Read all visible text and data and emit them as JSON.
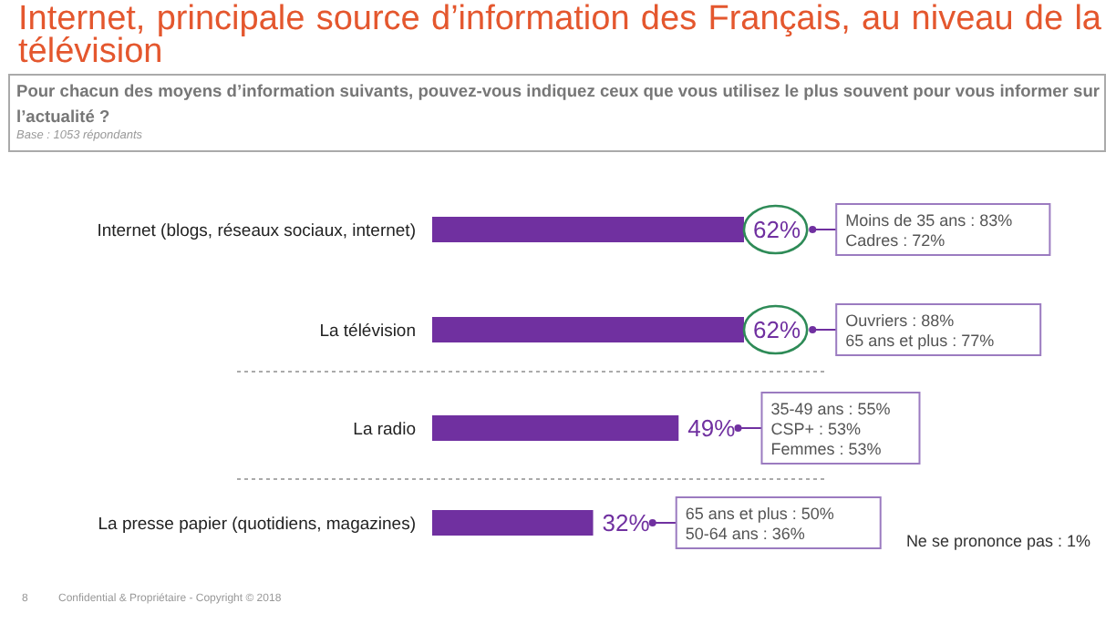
{
  "chart_data": {
    "type": "bar",
    "orientation": "horizontal",
    "title": "Internet, principale source d’information des Français, au niveau de la télévision",
    "subtitle": "Pour chacun des moyens d’information suivants, pouvez-vous indiquez ceux que vous utilisez le plus souvent pour vous informer sur l’actualité ?",
    "categories": [
      "Internet (blogs, réseaux sociaux, internet)",
      "La télévision",
      "La radio",
      "La presse papier (quotidiens, magazines)"
    ],
    "values": [
      62,
      62,
      49,
      32
    ],
    "color": "#7030a0",
    "value_labels": [
      "62%",
      "62%",
      "49%",
      "32%"
    ],
    "annotations": [
      "Moins de 35 ans : 83%\nCadres : 72%",
      "Ouvriers : 88%\n65 ans et plus : 77%",
      "35-49 ans : 55%\nCSP+ : 53%\nFemmes : 53%",
      "65 ans et plus : 50%\n50-64 ans : 36%",
      "Base : 1053 répondants",
      "Ne se prononce pas : 1%",
      "8",
      "Confidential & Propriétaire - Copyright © 2018"
    ]
  }
}
